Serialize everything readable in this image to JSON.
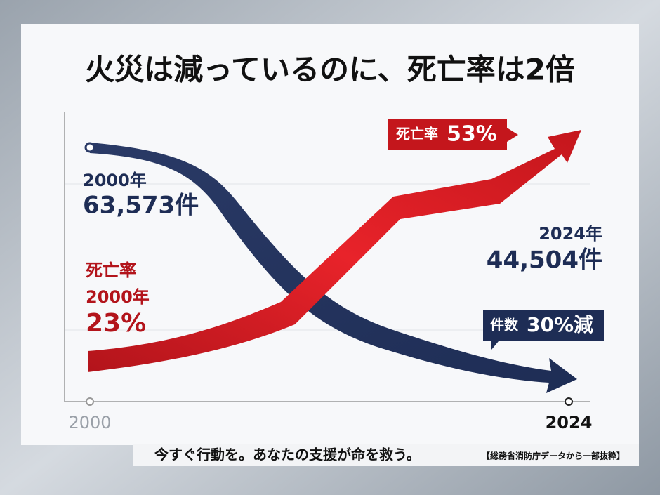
{
  "title": "火災は減っているのに、死亡率は2倍",
  "fires": {
    "start_year": "2000年",
    "start_count": "63,573件",
    "end_year": "2024年",
    "end_count": "44,504件",
    "callout_label": "件数",
    "callout_value": "30%減"
  },
  "death_rate": {
    "label": "死亡率",
    "start_year": "2000年",
    "start_value": "23%",
    "callout_label": "死亡率",
    "callout_value": "53%"
  },
  "x_axis": {
    "start": "2000",
    "end": "2024"
  },
  "footer": {
    "message": "今すぐ行動を。あなたの支援が命を救う。",
    "source": "【総務省消防庁データから一部抜粋】"
  }
}
